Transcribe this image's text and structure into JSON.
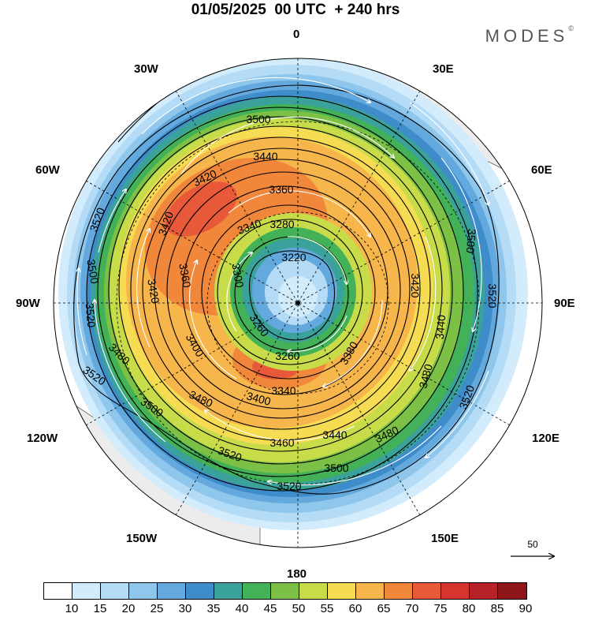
{
  "header": {
    "title": "01/05/2025  00 UTC  + 240 hrs",
    "logo": "MODES",
    "logo_mark": "©"
  },
  "map": {
    "projection": "north-polar-stereographic",
    "longitude_labels": {
      "top": "0",
      "bottom": "180",
      "left": "90W",
      "right": "90E",
      "l30": "30W",
      "l60": "60W",
      "l120": "120W",
      "l150": "150W",
      "r30": "30E",
      "r60": "60E",
      "r120": "120E",
      "r150": "150E"
    },
    "contour_labels": [
      "3220",
      "3260",
      "3260",
      "3280",
      "3300",
      "3340",
      "3340",
      "3360",
      "3360",
      "3380",
      "3400",
      "3400",
      "3420",
      "3420",
      "3420",
      "3420",
      "3440",
      "3440",
      "3440",
      "3460",
      "3480",
      "3480",
      "3480",
      "3480",
      "3500",
      "3500",
      "3500",
      "3500",
      "3500",
      "3520",
      "3520",
      "3520",
      "3520",
      "3520",
      "3520",
      "3520"
    ],
    "colors": {
      "ocean": "#ffffff",
      "land": "#ececec",
      "coast": "#666666",
      "contour": "#000000",
      "wind_arrows": "#ffffff"
    }
  },
  "wind_speed_colorbar": {
    "ticks": [
      "10",
      "15",
      "20",
      "25",
      "30",
      "35",
      "40",
      "45",
      "50",
      "55",
      "60",
      "65",
      "70",
      "75",
      "80",
      "85",
      "90"
    ],
    "colors": [
      "#ffffff",
      "#d2ecfb",
      "#b4dcf7",
      "#8ec6ec",
      "#63a9dd",
      "#3f8ccb",
      "#3aa29a",
      "#43b157",
      "#7cc145",
      "#c8dc4a",
      "#f5dc52",
      "#f6b64b",
      "#f0873a",
      "#e8593a",
      "#d6352f",
      "#b72228",
      "#8e1518"
    ]
  },
  "reference_vector": {
    "value": "50"
  }
}
